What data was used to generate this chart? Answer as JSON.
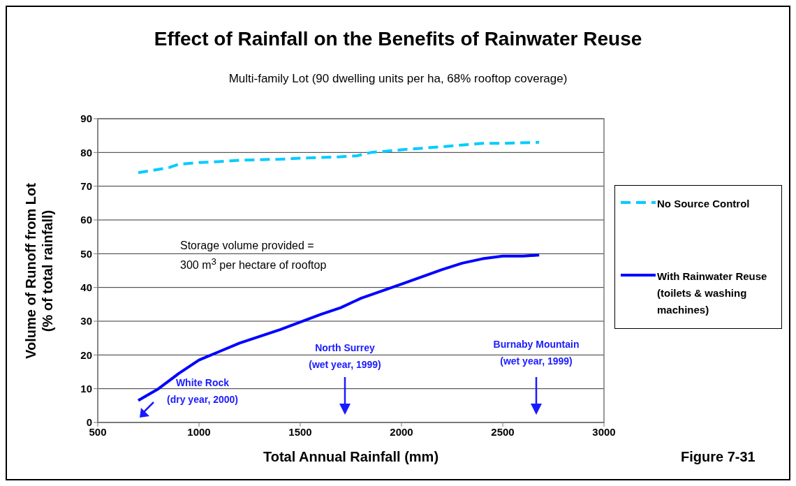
{
  "chart_data": {
    "type": "line",
    "title": "Effect of Rainfall on the Benefits of Rainwater Reuse",
    "subtitle": "Multi-family Lot (90 dwelling units per ha, 68% rooftop coverage)",
    "xlabel": "Total Annual Rainfall (mm)",
    "ylabel": "Volume of Runoff from Lot\n(% of total rainfall)",
    "xlim": [
      500,
      3000
    ],
    "xticks": [
      500,
      1000,
      1500,
      2000,
      2500,
      3000
    ],
    "ylim": [
      0,
      90
    ],
    "yticks": [
      0,
      10,
      20,
      30,
      40,
      50,
      60,
      70,
      80,
      90
    ],
    "grid": "y",
    "legend": "right",
    "marker": "none",
    "series": [
      {
        "name": "No Source Control",
        "color": "#00ccff",
        "line_style": "dashed",
        "x": [
          700,
          750,
          850,
          900,
          1000,
          1100,
          1200,
          1400,
          1500,
          1700,
          1780,
          1850,
          2000,
          2200,
          2400,
          2500,
          2680
        ],
        "values": [
          74,
          74.5,
          75.5,
          76.5,
          77,
          77.3,
          77.7,
          78,
          78.3,
          78.7,
          79,
          80,
          80.8,
          81.7,
          82.7,
          82.7,
          83
        ]
      },
      {
        "name": "With Rainwater Reuse (toilets & washing machines)",
        "color": "#0000ff",
        "line_style": "solid",
        "x": [
          700,
          800,
          900,
          1000,
          1100,
          1200,
          1400,
          1600,
          1700,
          1800,
          2000,
          2200,
          2300,
          2400,
          2500,
          2600,
          2680
        ],
        "values": [
          6.5,
          10,
          14.5,
          18.5,
          21,
          23.5,
          27.5,
          32,
          34,
          36.8,
          41,
          45.3,
          47.2,
          48.5,
          49.3,
          49.3,
          49.6
        ]
      }
    ],
    "annotations": [
      "White Rock\n(dry year, 2000)",
      "North Surrey\n(wet year, 1999)",
      "Burnaby Mountain\n(wet year, 1999)",
      "Storage volume provided =\n300 m$^{3}$ per hectare of rooftop",
      "Figure 7-31"
    ]
  }
}
